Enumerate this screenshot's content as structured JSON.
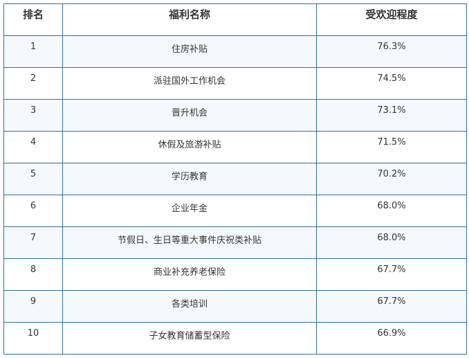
{
  "table": {
    "header": [
      "排名",
      "福利名称",
      "受欢迎程度"
    ],
    "rows": [
      [
        "1",
        "住房补贴",
        "76.3%"
      ],
      [
        "2",
        "派驻国外工作机会",
        "74.5%"
      ],
      [
        "3",
        "晋升机会",
        "73.1%"
      ],
      [
        "4",
        "休假及旅游补贴",
        "71.5%"
      ],
      [
        "5",
        "学历教育",
        "70.2%"
      ],
      [
        "6",
        "企业年金",
        "68.0%"
      ],
      [
        "7",
        "节假日、生日等重大事件庆祝类补贴",
        "68.0%"
      ],
      [
        "8",
        "商业补充养老保险",
        "67.7%"
      ],
      [
        "9",
        "各类培训",
        "67.7%"
      ],
      [
        "10",
        "子女教育储蓄型保险",
        "66.9%"
      ]
    ]
  }
}
